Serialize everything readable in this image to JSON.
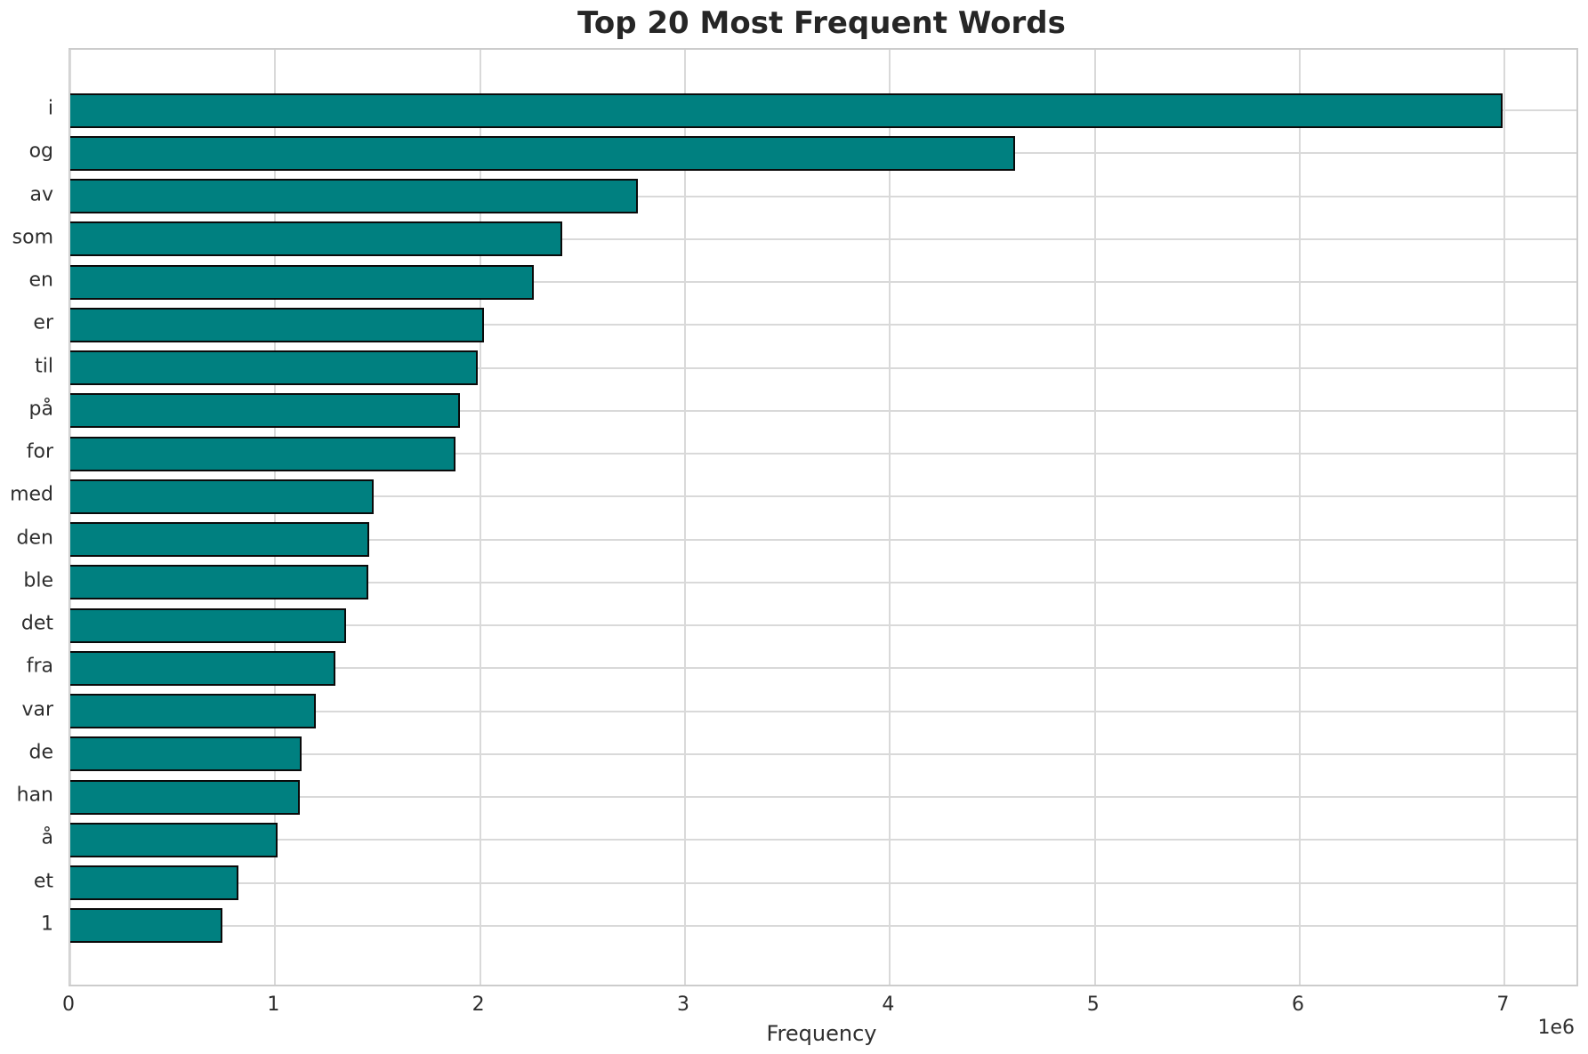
{
  "chart": {
    "title": "Top 20 Most Frequent Words",
    "xlabel": "Frequency",
    "offset_label": "1e6"
  },
  "chart_data": {
    "type": "bar",
    "orientation": "horizontal",
    "title": "Top 20 Most Frequent Words",
    "xlabel": "Frequency",
    "ylabel": "",
    "categories": [
      "i",
      "og",
      "av",
      "som",
      "en",
      "er",
      "til",
      "på",
      "for",
      "med",
      "den",
      "ble",
      "det",
      "fra",
      "var",
      "de",
      "han",
      "å",
      "et",
      "1"
    ],
    "values": [
      6990000,
      4610000,
      2770000,
      2400000,
      2260000,
      2020000,
      1990000,
      1900000,
      1880000,
      1480000,
      1460000,
      1455000,
      1345000,
      1295000,
      1200000,
      1130000,
      1120000,
      1010000,
      820000,
      742000
    ],
    "xlim": [
      0,
      7350000
    ],
    "xticks": [
      0,
      1000000,
      2000000,
      3000000,
      4000000,
      5000000,
      6000000,
      7000000
    ],
    "xtick_labels": [
      "0",
      "1",
      "2",
      "3",
      "4",
      "5",
      "6",
      "7"
    ],
    "x_offset_text": "1e6",
    "grid": true,
    "gridline_orientation": "both",
    "legend": null,
    "bar_color": "#008080",
    "bar_edge_color": "#0a0a0a",
    "grid_color": "#d9d9d9",
    "spine_color": "#cccccc",
    "text_color": "#262626"
  }
}
